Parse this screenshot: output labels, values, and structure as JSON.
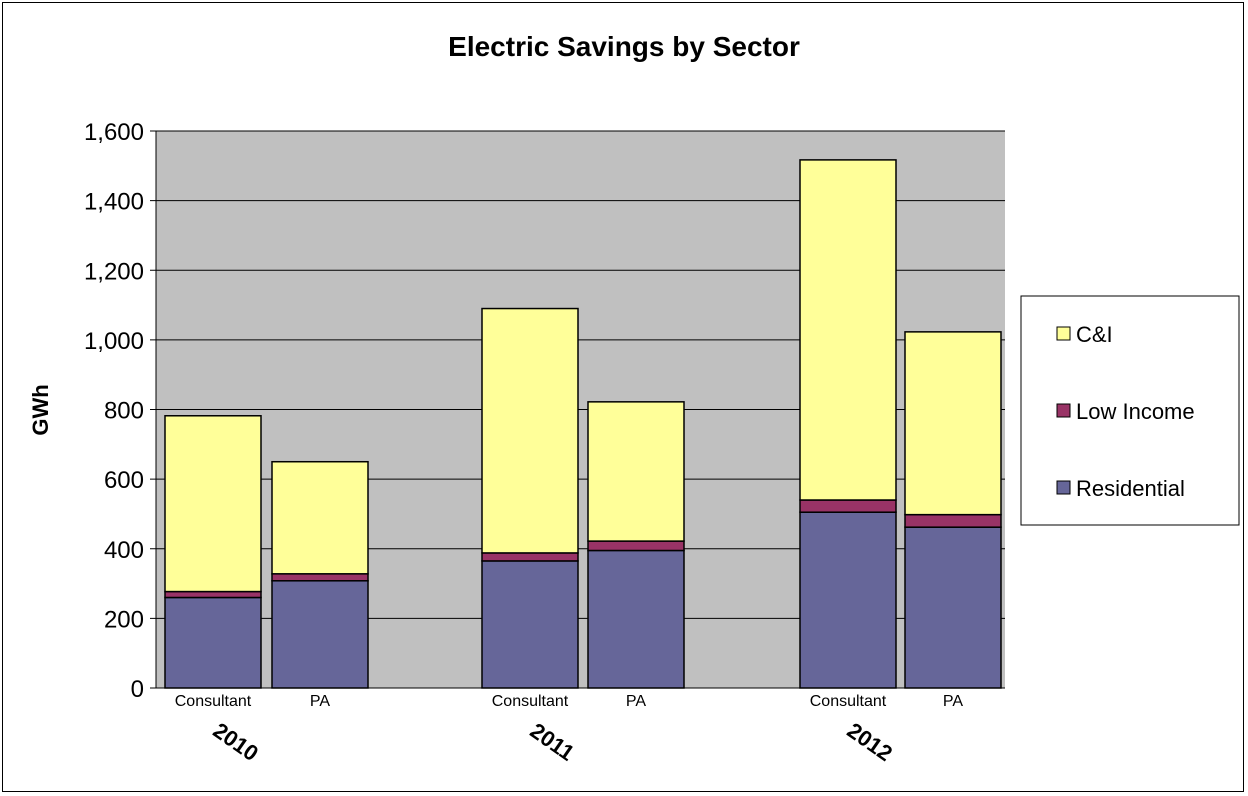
{
  "chart_data": {
    "type": "bar",
    "stacked": true,
    "title": "Electric Savings by Sector",
    "ylabel": "GWh",
    "ylim": [
      0,
      1600
    ],
    "yticks": [
      0,
      200,
      400,
      600,
      800,
      1000,
      1200,
      1400,
      1600
    ],
    "ytick_labels": [
      "0",
      "200",
      "400",
      "600",
      "800",
      "1,000",
      "1,200",
      "1,400",
      "1,600"
    ],
    "grid": true,
    "legend_position": "right",
    "groups": [
      "2010",
      "2011",
      "2012"
    ],
    "categories": [
      "Consultant",
      "PA",
      "Consultant",
      "PA",
      "Consultant",
      "PA"
    ],
    "category_group": [
      0,
      0,
      1,
      1,
      2,
      2
    ],
    "series": [
      {
        "name": "Residential",
        "color": "#666699",
        "values": [
          260,
          308,
          365,
          395,
          505,
          462
        ]
      },
      {
        "name": "Low Income",
        "color": "#993366",
        "values": [
          17,
          20,
          23,
          27,
          35,
          36
        ]
      },
      {
        "name": "C&I",
        "color": "#FFFF99",
        "values": [
          505,
          322,
          702,
          400,
          977,
          525
        ]
      }
    ],
    "legend_order": [
      "C&I",
      "Low Income",
      "Residential"
    ],
    "plot_background": "#C0C0C0"
  }
}
